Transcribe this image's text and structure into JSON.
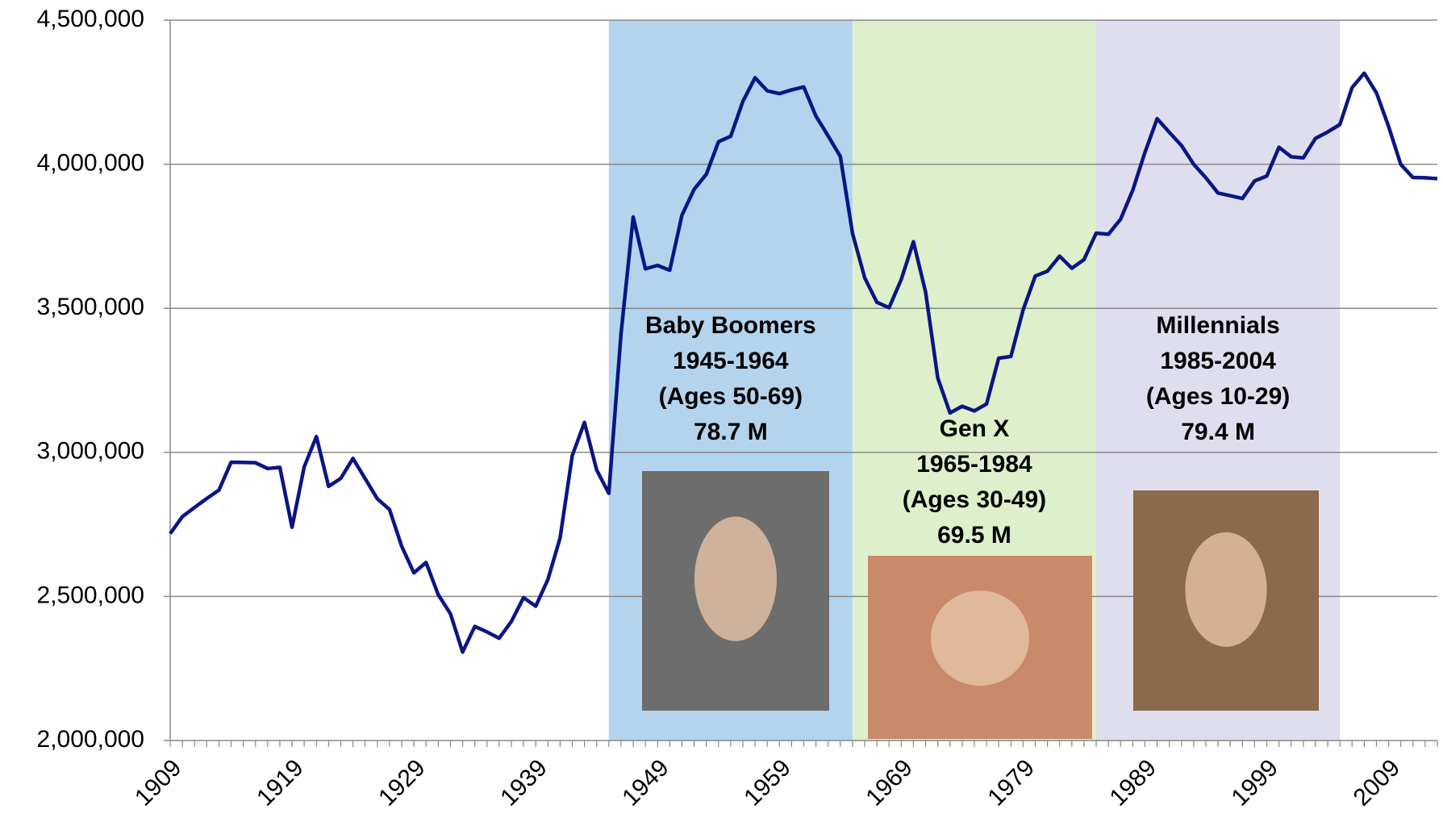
{
  "chart_data": {
    "type": "line",
    "x": [
      1909,
      1910,
      1911,
      1912,
      1913,
      1914,
      1915,
      1916,
      1917,
      1918,
      1919,
      1920,
      1921,
      1922,
      1923,
      1924,
      1925,
      1926,
      1927,
      1928,
      1929,
      1930,
      1931,
      1932,
      1933,
      1934,
      1935,
      1936,
      1937,
      1938,
      1939,
      1940,
      1941,
      1942,
      1943,
      1944,
      1945,
      1946,
      1947,
      1948,
      1949,
      1950,
      1951,
      1952,
      1953,
      1954,
      1955,
      1956,
      1957,
      1958,
      1959,
      1960,
      1961,
      1962,
      1963,
      1964,
      1965,
      1966,
      1967,
      1968,
      1969,
      1970,
      1971,
      1972,
      1973,
      1974,
      1975,
      1976,
      1977,
      1978,
      1979,
      1980,
      1981,
      1982,
      1983,
      1984,
      1985,
      1986,
      1987,
      1988,
      1989,
      1990,
      1991,
      1992,
      1993,
      1994,
      1995,
      1996,
      1997,
      1998,
      1999,
      2000,
      2001,
      2002,
      2003,
      2004,
      2005,
      2006,
      2007,
      2008,
      2009,
      2010,
      2011,
      2012,
      2013
    ],
    "series": [
      {
        "color": "#0a1683",
        "values": [
          2718000,
          2777000,
          2809000,
          2840000,
          2869000,
          2966000,
          2965000,
          2964000,
          2944000,
          2948000,
          2740000,
          2950000,
          3055000,
          2882000,
          2910000,
          2979000,
          2909000,
          2839000,
          2802000,
          2674000,
          2582000,
          2618000,
          2506000,
          2440000,
          2307000,
          2396000,
          2377000,
          2355000,
          2413000,
          2496000,
          2466000,
          2559000,
          2703000,
          2989000,
          3104000,
          2939000,
          2858000,
          3411000,
          3817000,
          3637000,
          3649000,
          3632000,
          3823000,
          3913000,
          3965000,
          4078000,
          4097000,
          4218000,
          4300000,
          4255000,
          4245000,
          4258000,
          4268000,
          4167000,
          4098000,
          4027000,
          3760000,
          3606000,
          3521000,
          3502000,
          3600000,
          3731000,
          3556000,
          3258000,
          3137000,
          3160000,
          3144000,
          3168000,
          3327000,
          3333000,
          3494000,
          3612000,
          3629000,
          3681000,
          3639000,
          3669000,
          3761000,
          3757000,
          3809000,
          3910000,
          4041000,
          4158000,
          4111000,
          4065000,
          4000000,
          3953000,
          3900000,
          3891000,
          3881000,
          3942000,
          3959000,
          4059000,
          4026000,
          4022000,
          4090000,
          4112000,
          4138000,
          4266000,
          4316000,
          4248000,
          4131000,
          3999000,
          3954000,
          3953000,
          3950000
        ]
      }
    ],
    "xlim": [
      1909,
      2013
    ],
    "xticks": [
      1909,
      1919,
      1929,
      1939,
      1949,
      1959,
      1969,
      1979,
      1989,
      1999,
      2009
    ],
    "ylim": [
      2000000,
      4500000
    ],
    "yticks": [
      {
        "value": 2000000,
        "label": "2,000,000"
      },
      {
        "value": 2500000,
        "label": "2,500,000"
      },
      {
        "value": 3000000,
        "label": "3,000,000"
      },
      {
        "value": 3500000,
        "label": "3,500,000"
      },
      {
        "value": 4000000,
        "label": "4,000,000"
      },
      {
        "value": 4500000,
        "label": "4,500,000"
      }
    ],
    "grid": true,
    "annotations": [
      {
        "lines": [
          "Baby Boomers",
          "1945-1964",
          "(Ages 50-69)",
          "78.7 M"
        ],
        "span": [
          1945,
          1965
        ],
        "color": "#b4d4ee"
      },
      {
        "lines": [
          "Gen X",
          "1965-1984",
          "(Ages 30-49)",
          "69.5 M"
        ],
        "span": [
          1965,
          1985
        ],
        "color": "#def0cb"
      },
      {
        "lines": [
          "Millennials",
          "1985-2004",
          "(Ages 10-29)",
          "79.4 M"
        ],
        "span": [
          1985,
          2005
        ],
        "color": "#dedeee"
      }
    ]
  }
}
